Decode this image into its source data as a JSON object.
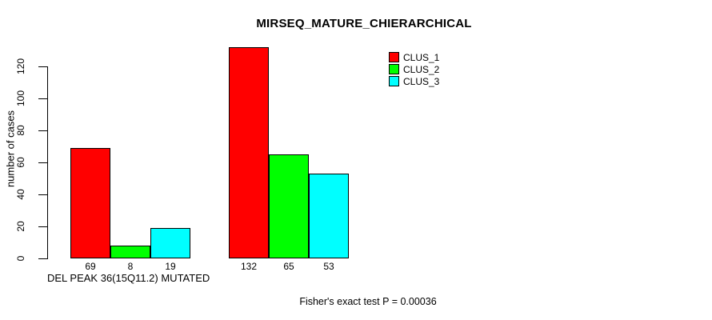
{
  "chart_data": {
    "type": "bar",
    "title": "MIRSEQ_MATURE_CHIERARCHICAL",
    "ylabel": "number of cases",
    "xlabel": "DEL PEAK 36(15Q11.2) MUTATED",
    "annotation": "Fisher's exact test P = 0.00036",
    "yticks": [
      0,
      20,
      40,
      60,
      80,
      100,
      120
    ],
    "ylim": [
      0,
      135
    ],
    "grid": false,
    "legend_position": "top-right",
    "group_labels": [
      "DEL PEAK 36(15Q11.2) MUTATED",
      ""
    ],
    "series": [
      {
        "name": "CLUS_1",
        "color": "#ff0000",
        "values": [
          69,
          132
        ]
      },
      {
        "name": "CLUS_2",
        "color": "#00ff00",
        "values": [
          8,
          65
        ]
      },
      {
        "name": "CLUS_3",
        "color": "#00ffff",
        "values": [
          19,
          53
        ]
      }
    ],
    "bar_value_labels_shown": true,
    "colors": {
      "axis": "#000000",
      "text": "#000000",
      "background": "#ffffff"
    }
  }
}
